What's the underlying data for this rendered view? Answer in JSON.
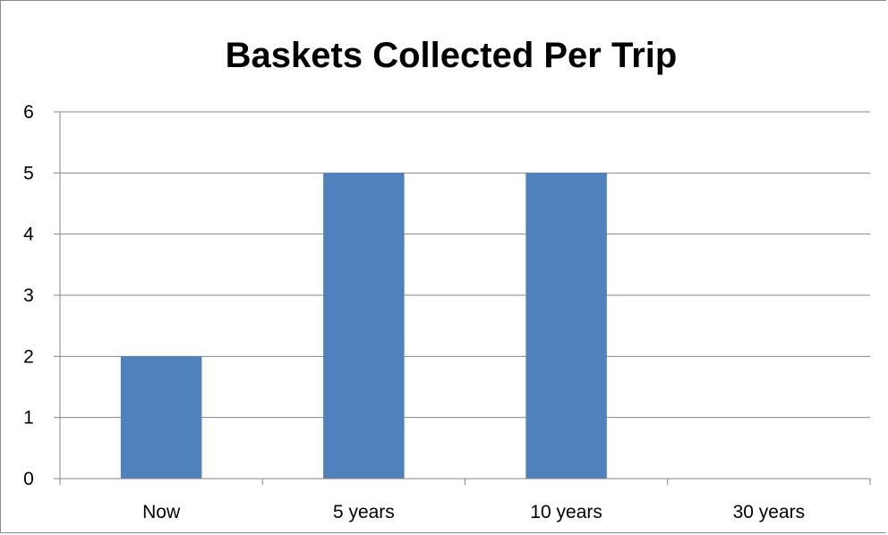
{
  "chart_data": {
    "type": "bar",
    "title": "Baskets Collected Per Trip",
    "categories": [
      "Now",
      "5 years",
      "10 years",
      "30 years"
    ],
    "values": [
      2,
      5,
      5,
      0
    ],
    "xlabel": "",
    "ylabel": "",
    "ylim": [
      0,
      6
    ],
    "yticks": [
      "0",
      "1",
      "2",
      "3",
      "4",
      "5",
      "6"
    ],
    "grid": true,
    "legend": "none",
    "bar_color": "#4f81bd",
    "grid_color": "#868686"
  }
}
